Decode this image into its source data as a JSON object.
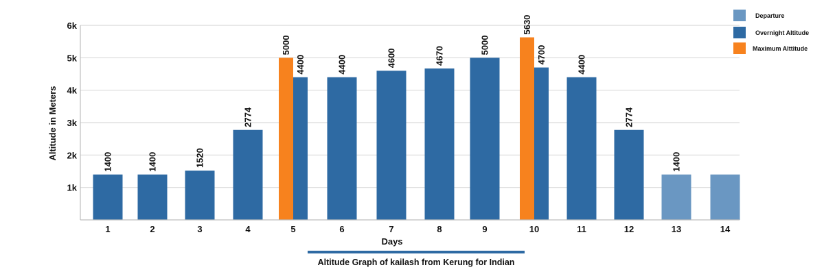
{
  "chart_data": {
    "type": "bar",
    "title": "Altitude Graph of kailash from Kerung  for Indian",
    "xlabel": "Days",
    "ylabel": "Altitude in Meters",
    "ylim": [
      0,
      6000
    ],
    "y_ticks": [
      "1k",
      "2k",
      "3k",
      "4k",
      "5k",
      "6k"
    ],
    "categories": [
      "1",
      "2",
      "3",
      "4",
      "5",
      "6",
      "7",
      "8",
      "9",
      "10",
      "11",
      "12",
      "13",
      "14"
    ],
    "grid": true,
    "legend_position": "top-right",
    "series": [
      {
        "name": "Departure",
        "color": "#6a97c2",
        "values": [
          null,
          null,
          null,
          null,
          null,
          null,
          null,
          null,
          null,
          null,
          null,
          null,
          1400,
          1400
        ],
        "labels": [
          "",
          "",
          "",
          "",
          "",
          "",
          "",
          "",
          "",
          "",
          "",
          "",
          "1400",
          ""
        ]
      },
      {
        "name": "Overnight Altitude",
        "color": "#2e6aa3",
        "values": [
          1400,
          1400,
          1520,
          2774,
          4400,
          4400,
          4600,
          4670,
          5000,
          4700,
          4400,
          2774,
          null,
          null
        ],
        "labels": [
          "1400",
          "1400",
          "1520",
          "2774",
          "4400",
          "4400",
          "4600",
          "4670",
          "5000",
          "4700",
          "4400",
          "2774",
          "",
          ""
        ]
      },
      {
        "name": "Maximum Alttitude",
        "color": "#f7821e",
        "values": [
          null,
          null,
          null,
          null,
          5000,
          null,
          null,
          null,
          null,
          5630,
          null,
          null,
          null,
          null
        ],
        "labels": [
          "",
          "",
          "",
          "",
          "5000",
          "",
          "",
          "",
          "",
          "5630",
          "",
          "",
          "",
          ""
        ]
      }
    ]
  }
}
